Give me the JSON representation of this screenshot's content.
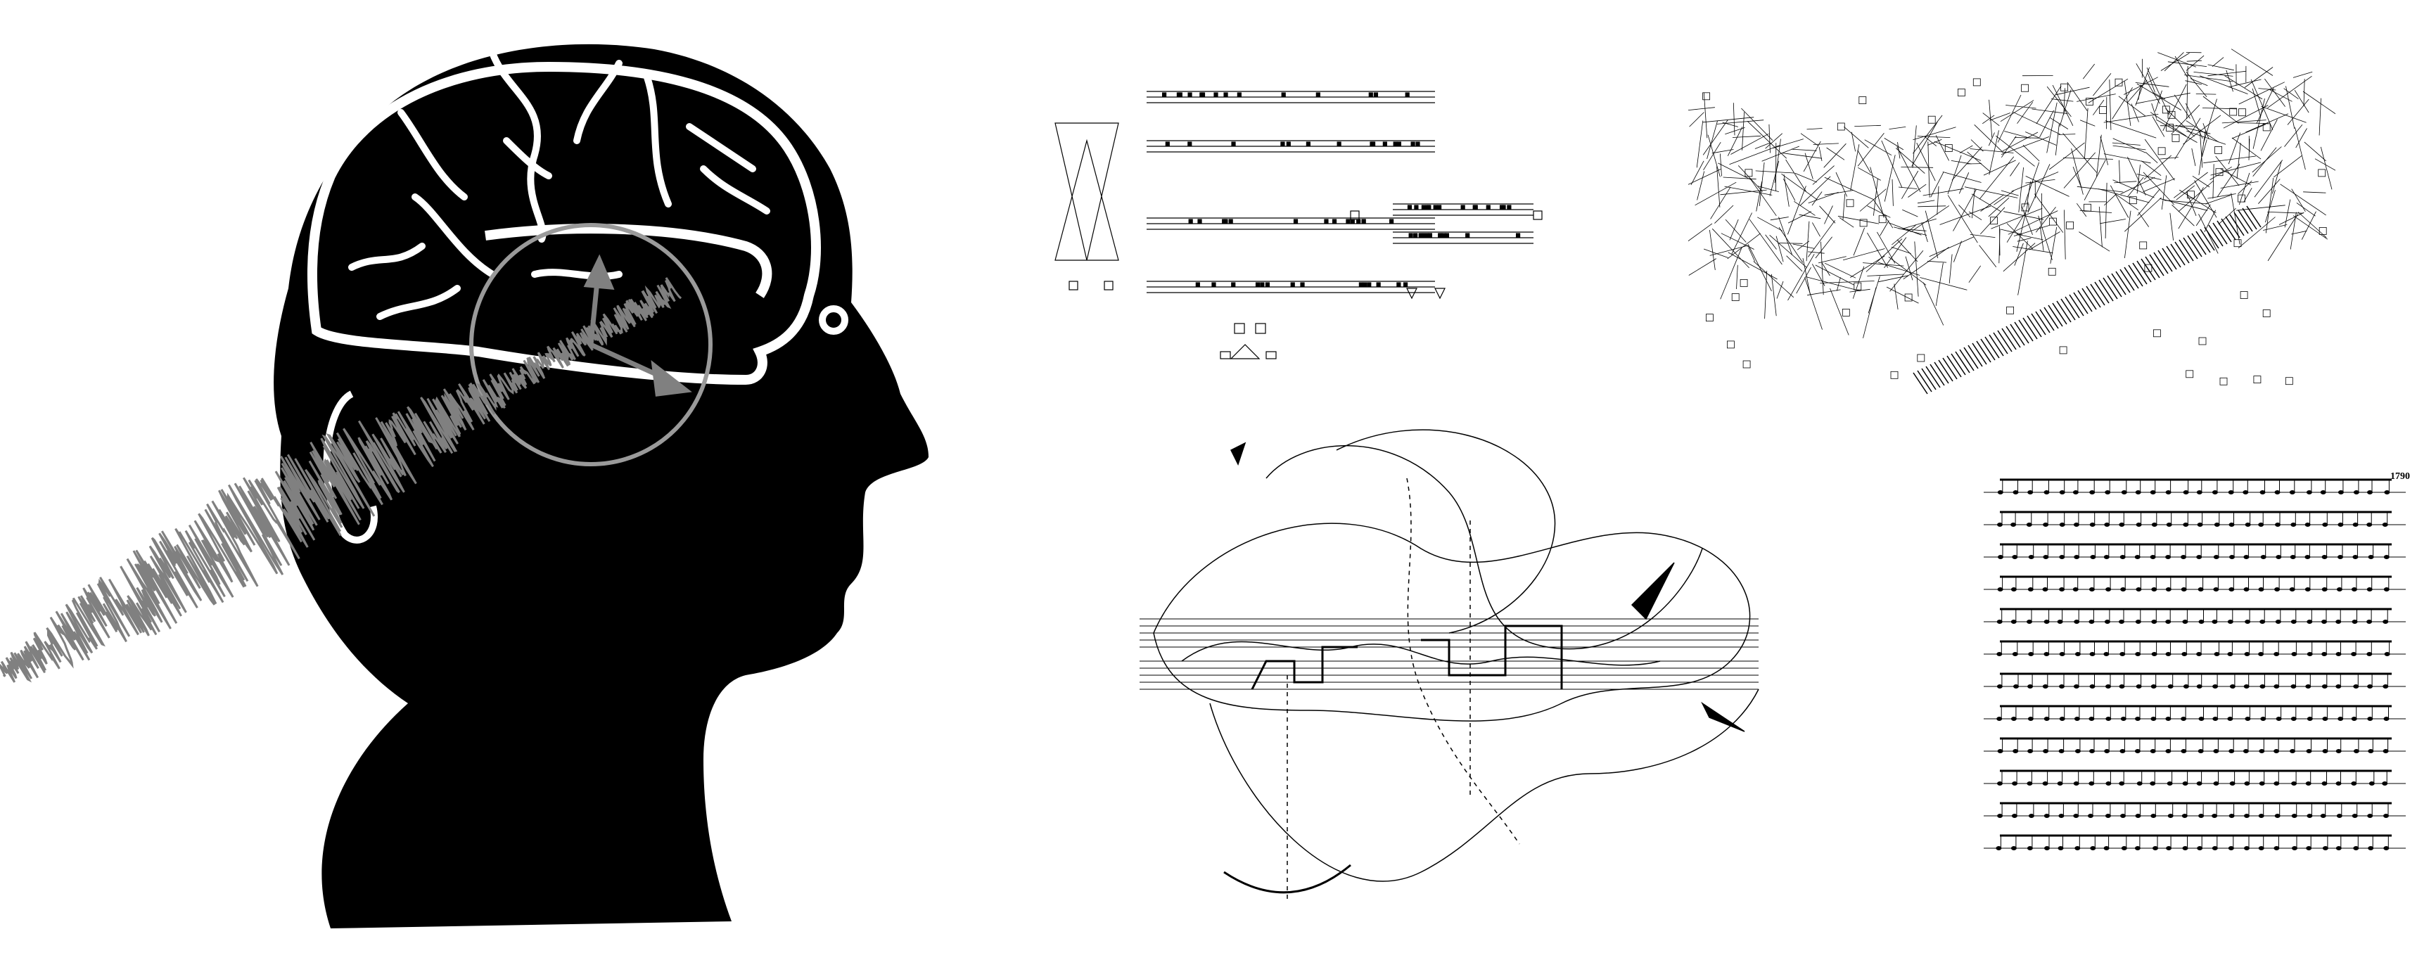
{
  "colors": {
    "background": "#ffffff",
    "silhouette": "#000000",
    "brain_lines": "#ffffff",
    "waveform": "#808080",
    "focus_ring": "#9a9a9a"
  },
  "icons": {
    "head": "head-silhouette",
    "brain": "brain-outline",
    "wave": "sound-waveform",
    "ring": "focus-circle"
  },
  "score_d": {
    "catalog_number": "1790"
  }
}
